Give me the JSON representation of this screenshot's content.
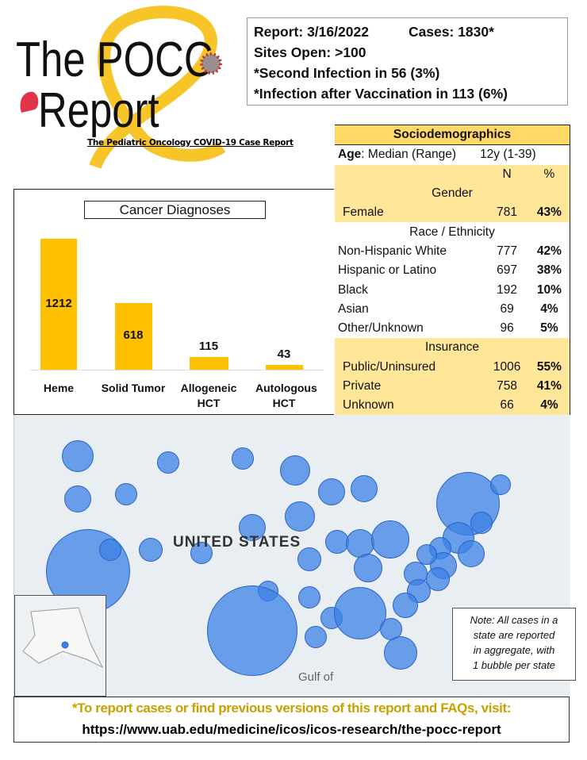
{
  "logo": {
    "line1": "The POCC",
    "line2": "Report",
    "subtitle": "The Pediatric Oncology COVID-19 Case Report"
  },
  "header": {
    "report": "Report: 3/16/2022",
    "cases": "Cases: 1830*",
    "sites": "Sites Open: >100",
    "second": "*Second Infection in 56 (3%)",
    "vaccination": "*Infection after Vaccination in  113 (6%)"
  },
  "chart_data": {
    "type": "bar",
    "title": "Cancer Diagnoses",
    "categories": [
      "Heme",
      "Solid Tumor",
      "Allogeneic HCT",
      "Autologous HCT"
    ],
    "values": [
      1212,
      618,
      115,
      43
    ],
    "color": "#FFC000",
    "xlabel": "",
    "ylabel": ""
  },
  "table": {
    "title": "Sociodemographics",
    "age_label": "Age",
    "age_rest": ": Median (Range)",
    "age_value": "12y (1-39)",
    "col_n": "N",
    "col_pct": "%",
    "gender": {
      "heading": "Gender",
      "rows": [
        {
          "label": "Female",
          "n": "781",
          "pct": "43%"
        }
      ]
    },
    "race": {
      "heading": "Race / Ethnicity",
      "rows": [
        {
          "label": "Non-Hispanic White",
          "n": "777",
          "pct": "42%"
        },
        {
          "label": "Hispanic or Latino",
          "n": "697",
          "pct": "38%"
        },
        {
          "label": "Black",
          "n": "192",
          "pct": "10%"
        },
        {
          "label": "Asian",
          "n": "69",
          "pct": "4%"
        },
        {
          "label": "Other/Unknown",
          "n": "96",
          "pct": "5%"
        }
      ]
    },
    "insurance": {
      "heading": "Insurance",
      "rows": [
        {
          "label": "Public/Uninsured",
          "n": "1006",
          "pct": "55%"
        },
        {
          "label": "Private",
          "n": "758",
          "pct": "41%"
        },
        {
          "label": "Unknown",
          "n": "66",
          "pct": "4%"
        }
      ]
    }
  },
  "map": {
    "country_label": "UNITED STATES",
    "gulf_label": "Gulf of",
    "bubble_color": "#3c82e6",
    "note": [
      "Note: All cases in a",
      "state are reported",
      "in aggregate, with",
      "1 bubble per state"
    ]
  },
  "footer": {
    "line1": "*To report cases or find previous versions of this report and FAQs, visit:",
    "line2": "https://www.uab.edu/medicine/icos/icos-research/the-pocc-report",
    "line1_color": "#C9A000"
  }
}
